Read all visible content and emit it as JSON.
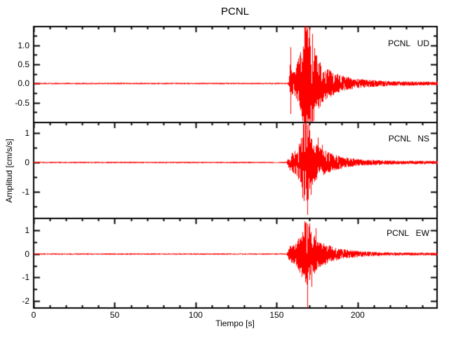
{
  "chart": {
    "title": "PCNL",
    "xlabel": "Tiempo [s]",
    "ylabel": "Amplitud [cm/s/s]"
  },
  "chart_data": {
    "type": "line",
    "title": "PCNL",
    "xlabel": "Tiempo [s]",
    "ylabel": "Amplitud [cm/s/s]",
    "legend_position": "none",
    "grid": false,
    "trace_color": "#ff0000",
    "frame_color": "#000000",
    "x_range": [
      0,
      249
    ],
    "x_major_ticks": [
      {
        "label": "0",
        "value": 0
      },
      {
        "label": "50",
        "value": 50
      },
      {
        "label": "100",
        "value": 100
      },
      {
        "label": "150",
        "value": 150
      },
      {
        "label": "200",
        "value": 200
      }
    ],
    "x_minor_step": 10,
    "event": {
      "station": "PCNL",
      "onset_s": 158,
      "peak_s": 168,
      "coda_end_s": 249
    },
    "series": [
      {
        "label": "PCNL   UD",
        "component": "UD",
        "units": "cm/s/s",
        "ylim": [
          -1.02,
          1.49
        ],
        "y_major_step": 0.5,
        "y_minor_step": 0.25,
        "y_ticks": [
          {
            "label": "1.0",
            "value": 1.0
          },
          {
            "label": "0.5",
            "value": 0.5
          },
          {
            "label": "0.0",
            "value": 0.0
          },
          {
            "label": "-0.5",
            "value": -0.5
          }
        ],
        "noise_amp": 0.02,
        "envelope": [
          [
            0,
            0.02
          ],
          [
            156,
            0.02
          ],
          [
            157.5,
            0.05
          ],
          [
            158.2,
            0.9
          ],
          [
            158.8,
            0.35
          ],
          [
            160,
            0.3
          ],
          [
            162,
            0.45
          ],
          [
            164,
            0.8
          ],
          [
            166,
            1.0
          ],
          [
            167.5,
            1.55
          ],
          [
            169,
            1.45
          ],
          [
            170.5,
            1.0
          ],
          [
            172,
            1.15
          ],
          [
            174,
            0.85
          ],
          [
            176,
            0.65
          ],
          [
            179,
            0.45
          ],
          [
            182,
            0.38
          ],
          [
            186,
            0.28
          ],
          [
            190,
            0.22
          ],
          [
            195,
            0.16
          ],
          [
            200,
            0.12
          ],
          [
            206,
            0.1
          ],
          [
            212,
            0.08
          ],
          [
            220,
            0.065
          ],
          [
            232,
            0.055
          ],
          [
            249,
            0.05
          ]
        ],
        "spikes": [
          [
            158.3,
            0.95
          ],
          [
            158.6,
            -0.8
          ],
          [
            167.3,
            1.8
          ],
          [
            168.3,
            1.7
          ],
          [
            168.9,
            -1.3
          ],
          [
            170.2,
            1.5
          ],
          [
            171.8,
            1.3
          ]
        ]
      },
      {
        "label": "PCNL   NS",
        "component": "NS",
        "units": "cm/s/s",
        "ylim": [
          -1.9,
          1.36
        ],
        "y_major_step": 1,
        "y_minor_step": 0.5,
        "y_ticks": [
          {
            "label": "1",
            "value": 1
          },
          {
            "label": "0",
            "value": 0
          },
          {
            "label": "-1",
            "value": -1
          }
        ],
        "noise_amp": 0.025,
        "envelope": [
          [
            0,
            0.025
          ],
          [
            156,
            0.025
          ],
          [
            158,
            0.3
          ],
          [
            159.5,
            0.35
          ],
          [
            161,
            0.4
          ],
          [
            163,
            0.55
          ],
          [
            165,
            0.9
          ],
          [
            166.5,
            1.5
          ],
          [
            168,
            1.6
          ],
          [
            169.5,
            1.3
          ],
          [
            171,
            0.9
          ],
          [
            173,
            0.75
          ],
          [
            175,
            0.6
          ],
          [
            177,
            0.5
          ],
          [
            180,
            0.42
          ],
          [
            183,
            0.32
          ],
          [
            186,
            0.26
          ],
          [
            190,
            0.2
          ],
          [
            195,
            0.15
          ],
          [
            200,
            0.12
          ],
          [
            208,
            0.09
          ],
          [
            216,
            0.075
          ],
          [
            228,
            0.06
          ],
          [
            249,
            0.055
          ]
        ],
        "spikes": [
          [
            166.8,
            1.6
          ],
          [
            167.6,
            1.5
          ],
          [
            168.8,
            -1.78
          ],
          [
            169.8,
            1.45
          ],
          [
            171.2,
            -1.1
          ],
          [
            175.5,
            0.85
          ],
          [
            178,
            0.6
          ]
        ]
      },
      {
        "label": "PCNL   EW",
        "component": "EW",
        "units": "cm/s/s",
        "ylim": [
          -2.3,
          1.52
        ],
        "y_major_step": 1,
        "y_minor_step": 0.5,
        "y_ticks": [
          {
            "label": "1",
            "value": 1
          },
          {
            "label": "0",
            "value": 0
          },
          {
            "label": "-1",
            "value": -1
          },
          {
            "label": "-2",
            "value": -2
          }
        ],
        "noise_amp": 0.03,
        "envelope": [
          [
            0,
            0.03
          ],
          [
            156,
            0.03
          ],
          [
            158,
            0.35
          ],
          [
            160,
            0.4
          ],
          [
            162,
            0.5
          ],
          [
            164,
            0.8
          ],
          [
            166,
            1.1
          ],
          [
            167.5,
            1.35
          ],
          [
            169,
            1.3
          ],
          [
            171,
            1.0
          ],
          [
            173,
            0.85
          ],
          [
            175,
            0.7
          ],
          [
            177,
            0.55
          ],
          [
            180,
            0.45
          ],
          [
            183,
            0.35
          ],
          [
            186,
            0.28
          ],
          [
            190,
            0.22
          ],
          [
            195,
            0.17
          ],
          [
            200,
            0.13
          ],
          [
            207,
            0.1
          ],
          [
            215,
            0.08
          ],
          [
            226,
            0.065
          ],
          [
            249,
            0.055
          ]
        ],
        "spikes": [
          [
            167.2,
            1.4
          ],
          [
            168.2,
            1.35
          ],
          [
            169.1,
            -2.3
          ],
          [
            170,
            1.3
          ],
          [
            171.5,
            -1.4
          ],
          [
            174,
            1.1
          ]
        ]
      }
    ]
  }
}
